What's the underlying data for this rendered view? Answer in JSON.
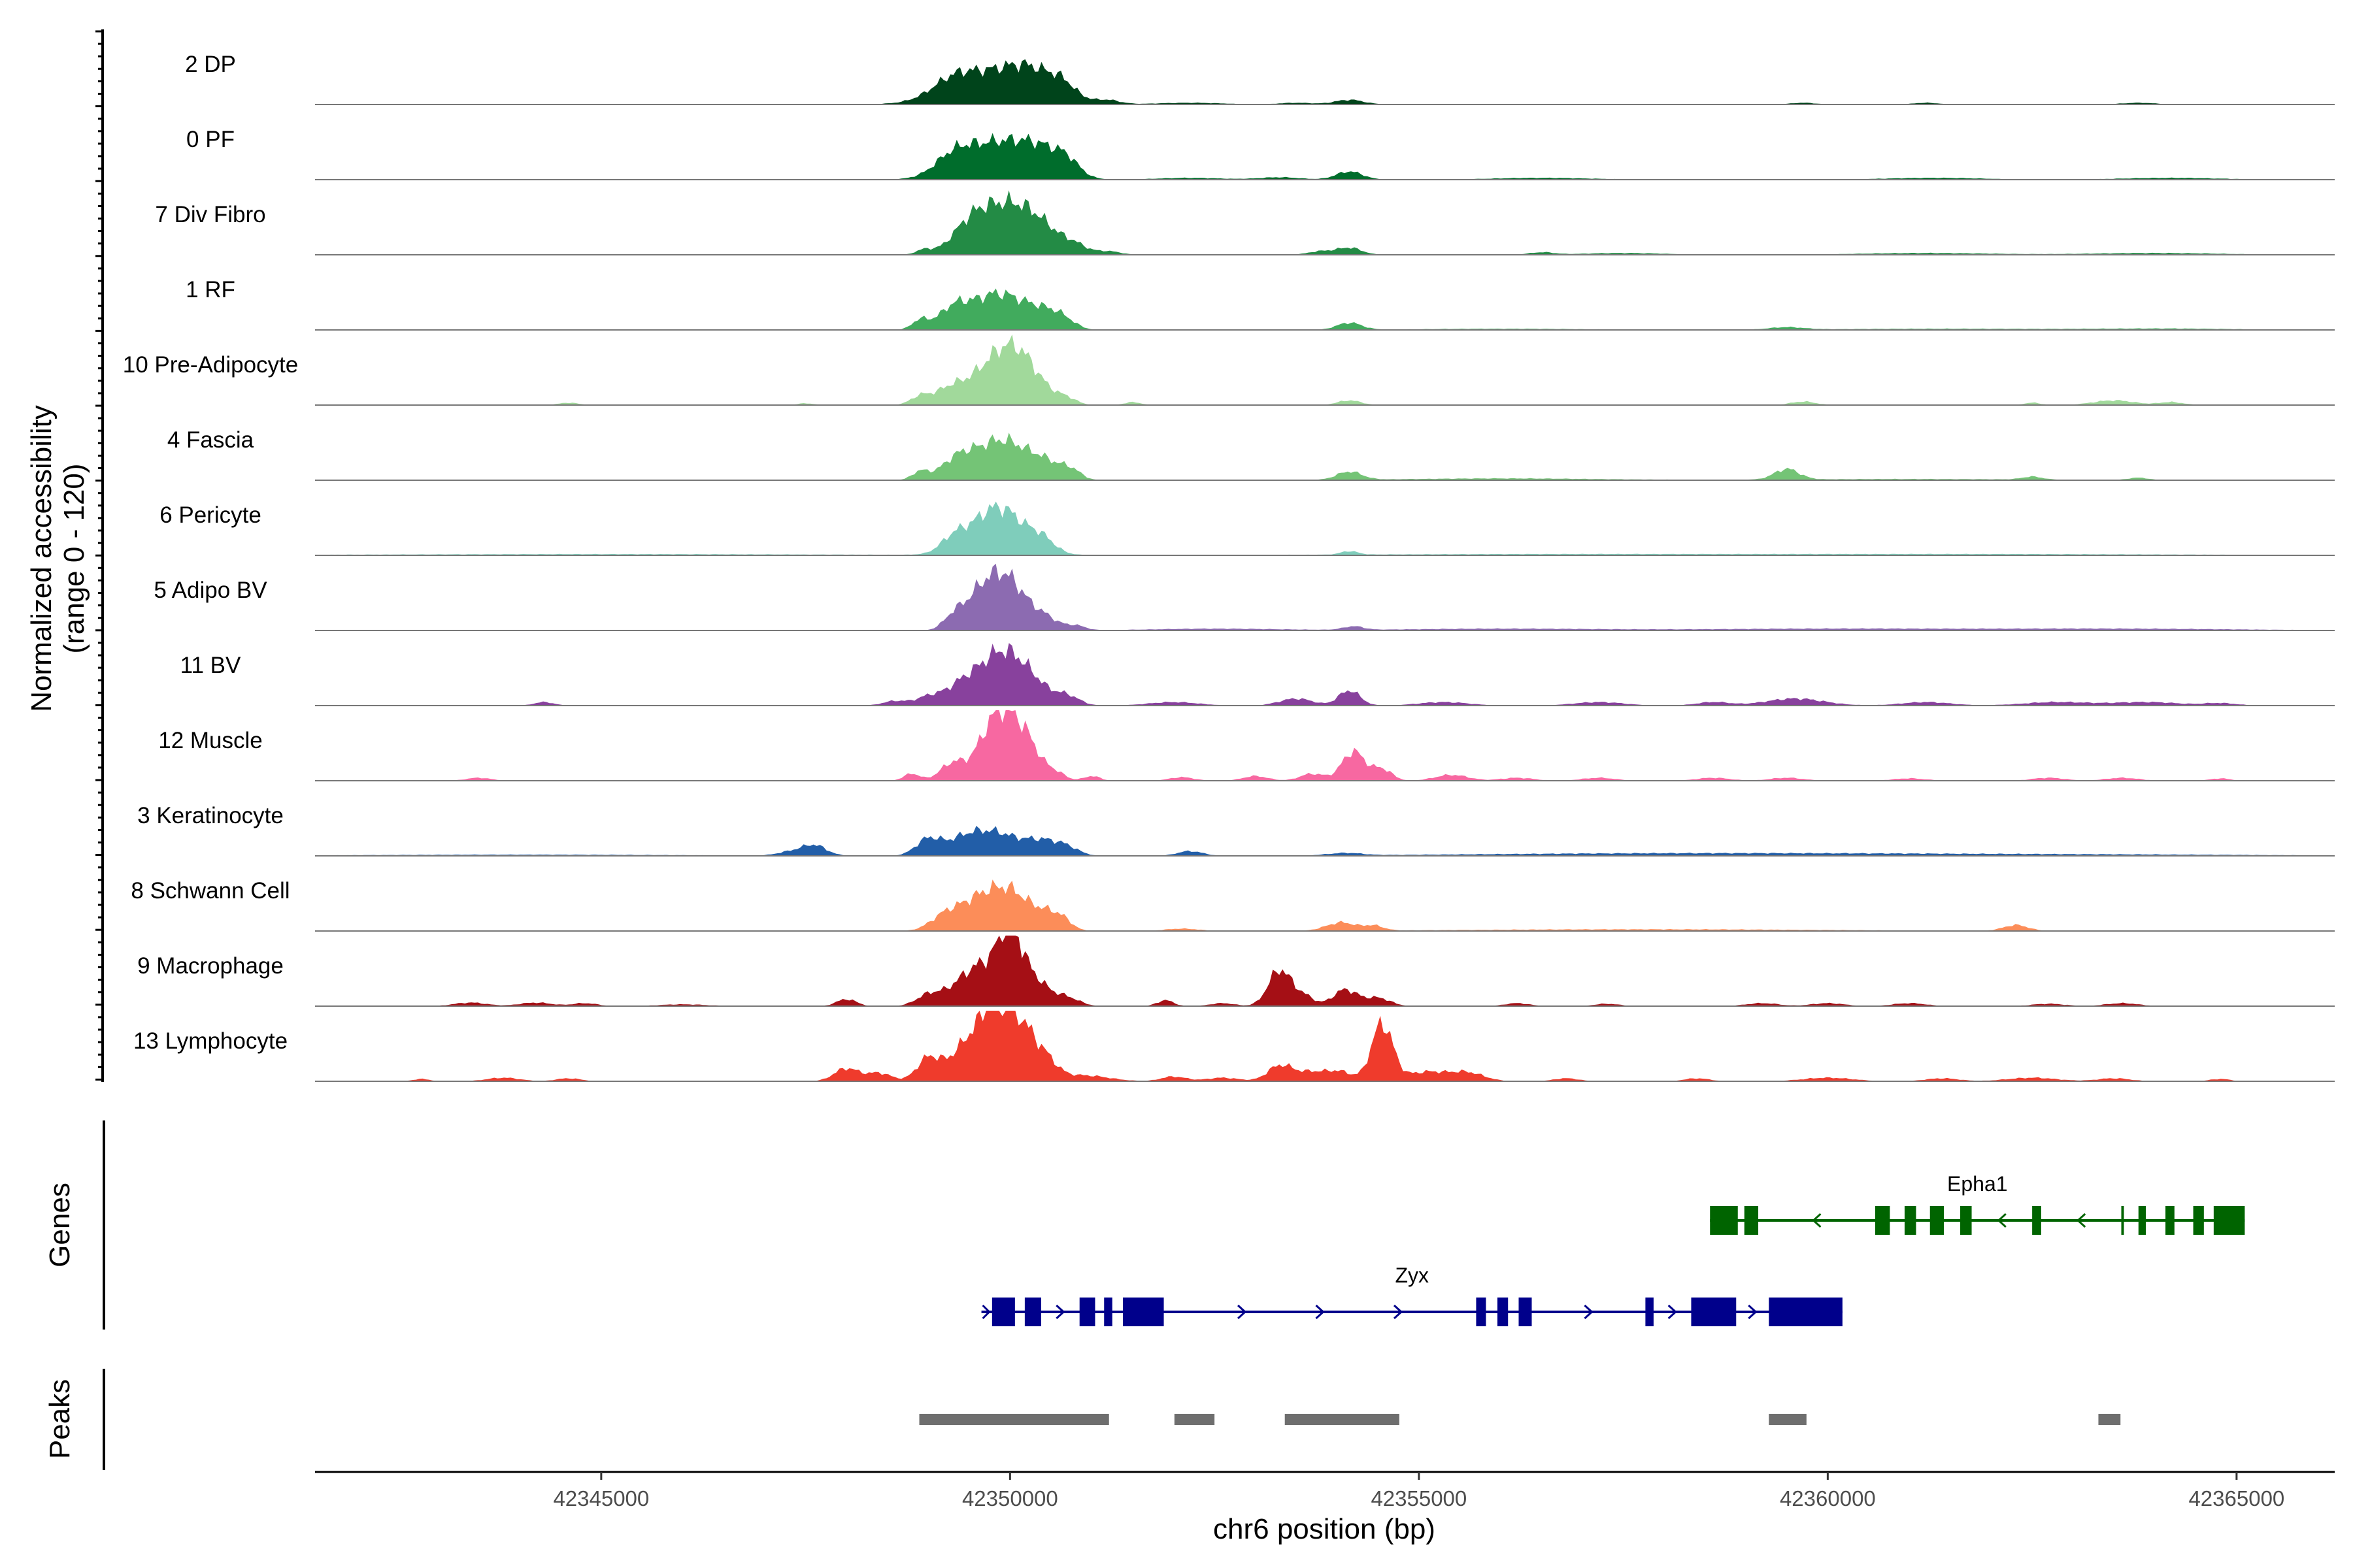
{
  "chart_data": {
    "type": "area",
    "title": "",
    "chrom": "chr6",
    "xlabel": "chr6 position (bp)",
    "ylabel": "Normalized accessibility",
    "ylabel_range": "(range 0 - 120)",
    "xlim": [
      42341500,
      42366200
    ],
    "ylim": [
      0,
      120
    ],
    "x_ticks": [
      42345000,
      42350000,
      42355000,
      42360000,
      42365000
    ],
    "x_tick_labels": [
      "42345000",
      "42350000",
      "42355000",
      "42360000",
      "42365000"
    ],
    "tracks": [
      {
        "name": "2 DP",
        "color": "#00441b",
        "peaks": [
          [
            42349850,
            52,
            520
          ],
          [
            42349300,
            22,
            250
          ],
          [
            42350300,
            28,
            300
          ],
          [
            42350650,
            16,
            150
          ],
          [
            42351200,
            6,
            150
          ],
          [
            42354150,
            8,
            180
          ],
          [
            42352200,
            3,
            400
          ],
          [
            42353500,
            3,
            200
          ],
          [
            42359700,
            3,
            150
          ],
          [
            42361200,
            3,
            150
          ],
          [
            42363800,
            3,
            200
          ]
        ]
      },
      {
        "name": "0 PF",
        "color": "#006d2c",
        "peaks": [
          [
            42349850,
            62,
            420
          ],
          [
            42349300,
            26,
            220
          ],
          [
            42350400,
            32,
            260
          ],
          [
            42350700,
            20,
            150
          ],
          [
            42354150,
            14,
            160
          ],
          [
            42353300,
            4,
            250
          ],
          [
            42352200,
            3,
            400
          ],
          [
            42356500,
            3,
            600
          ],
          [
            42361300,
            3,
            600
          ],
          [
            42364200,
            3,
            600
          ]
        ]
      },
      {
        "name": "7 Div Fibro",
        "color": "#238b45",
        "peaks": [
          [
            42349950,
            80,
            330
          ],
          [
            42349500,
            36,
            220
          ],
          [
            42350400,
            30,
            250
          ],
          [
            42348950,
            8,
            100
          ],
          [
            42350800,
            12,
            150
          ],
          [
            42351200,
            6,
            150
          ],
          [
            42354150,
            12,
            150
          ],
          [
            42353800,
            6,
            150
          ],
          [
            42356500,
            4,
            150
          ],
          [
            42357500,
            3,
            500
          ],
          [
            42361200,
            3,
            800
          ],
          [
            42364000,
            3,
            800
          ]
        ]
      },
      {
        "name": "1 RF",
        "color": "#41ab5d",
        "peaks": [
          [
            42349850,
            62,
            330
          ],
          [
            42349300,
            30,
            180
          ],
          [
            42348900,
            16,
            100
          ],
          [
            42350400,
            22,
            200
          ],
          [
            42350650,
            14,
            150
          ],
          [
            42354150,
            12,
            150
          ],
          [
            42359500,
            4,
            200
          ],
          [
            42356000,
            2,
            1000
          ],
          [
            42361500,
            2,
            1500
          ],
          [
            42364200,
            2,
            800
          ]
        ]
      },
      {
        "name": "10 Pre-Adipocyte",
        "color": "#a1d99b",
        "peaks": [
          [
            42349800,
            70,
            280
          ],
          [
            42350100,
            55,
            200
          ],
          [
            42349250,
            24,
            180
          ],
          [
            42348900,
            14,
            120
          ],
          [
            42350400,
            20,
            180
          ],
          [
            42350700,
            10,
            120
          ],
          [
            42351500,
            5,
            100
          ],
          [
            42354150,
            8,
            140
          ],
          [
            42359700,
            6,
            150
          ],
          [
            42363500,
            8,
            250
          ],
          [
            42364200,
            5,
            150
          ],
          [
            42344600,
            4,
            120
          ],
          [
            42347500,
            3,
            100
          ],
          [
            42362500,
            4,
            100
          ]
        ]
      },
      {
        "name": "4 Fascia",
        "color": "#74c476",
        "peaks": [
          [
            42349900,
            68,
            320
          ],
          [
            42349350,
            30,
            200
          ],
          [
            42348900,
            14,
            100
          ],
          [
            42350450,
            22,
            200
          ],
          [
            42350750,
            14,
            120
          ],
          [
            42354150,
            14,
            150
          ],
          [
            42359500,
            18,
            150
          ],
          [
            42362500,
            5,
            120
          ],
          [
            42363800,
            4,
            120
          ],
          [
            42356000,
            3,
            1200
          ],
          [
            42361000,
            2,
            1500
          ]
        ]
      },
      {
        "name": "6 Pericyte",
        "color": "#7fcdbb",
        "peaks": [
          [
            42349850,
            82,
            320
          ],
          [
            42349300,
            20,
            150
          ],
          [
            42350400,
            18,
            150
          ],
          [
            42354150,
            6,
            100
          ],
          [
            42345000,
            2,
            3000
          ],
          [
            42356500,
            2,
            2500
          ],
          [
            42362000,
            2,
            2500
          ]
        ]
      },
      {
        "name": "5 Adipo BV",
        "color": "#8c6bb1",
        "peaks": [
          [
            42349950,
            88,
            250
          ],
          [
            42349600,
            40,
            200
          ],
          [
            42349300,
            18,
            120
          ],
          [
            42350450,
            16,
            150
          ],
          [
            42350800,
            8,
            120
          ],
          [
            42354200,
            6,
            120
          ],
          [
            42352500,
            3,
            800
          ],
          [
            42356000,
            3,
            1200
          ],
          [
            42360000,
            3,
            1500
          ],
          [
            42363500,
            3,
            1500
          ]
        ]
      },
      {
        "name": "11 BV",
        "color": "#88419d",
        "peaks": [
          [
            42349900,
            90,
            270
          ],
          [
            42349400,
            30,
            200
          ],
          [
            42349000,
            14,
            150
          ],
          [
            42350300,
            24,
            200
          ],
          [
            42350700,
            16,
            150
          ],
          [
            42348600,
            8,
            150
          ],
          [
            42354150,
            26,
            130
          ],
          [
            42353500,
            12,
            200
          ],
          [
            42352000,
            6,
            300
          ],
          [
            42359600,
            12,
            350
          ],
          [
            42358600,
            6,
            200
          ],
          [
            42344300,
            6,
            120
          ],
          [
            42355300,
            6,
            300
          ],
          [
            42357200,
            6,
            300
          ],
          [
            42361200,
            6,
            300
          ],
          [
            42362800,
            6,
            400
          ],
          [
            42363900,
            6,
            400
          ],
          [
            42364800,
            4,
            200
          ]
        ]
      },
      {
        "name": "12 Muscle",
        "color": "#f768a1",
        "peaks": [
          [
            42349750,
            70,
            180
          ],
          [
            42350000,
            85,
            180
          ],
          [
            42350250,
            40,
            150
          ],
          [
            42349300,
            30,
            150
          ],
          [
            42348800,
            12,
            100
          ],
          [
            42350550,
            14,
            120
          ],
          [
            42351000,
            8,
            100
          ],
          [
            42354200,
            50,
            140
          ],
          [
            42354550,
            20,
            120
          ],
          [
            42353700,
            12,
            150
          ],
          [
            42353000,
            8,
            150
          ],
          [
            42355400,
            10,
            200
          ],
          [
            42352100,
            6,
            150
          ],
          [
            42343500,
            5,
            150
          ],
          [
            42356200,
            5,
            200
          ],
          [
            42357200,
            5,
            200
          ],
          [
            42358600,
            5,
            200
          ],
          [
            42359500,
            5,
            200
          ],
          [
            42361000,
            4,
            200
          ],
          [
            42362700,
            5,
            200
          ],
          [
            42363600,
            5,
            200
          ],
          [
            42364800,
            4,
            120
          ]
        ]
      },
      {
        "name": "3 Keratinocyte",
        "color": "#225ea8",
        "peaks": [
          [
            42349800,
            40,
            300
          ],
          [
            42349000,
            28,
            150
          ],
          [
            42349400,
            18,
            200
          ],
          [
            42350400,
            22,
            200
          ],
          [
            42350700,
            12,
            150
          ],
          [
            42347600,
            18,
            150
          ],
          [
            42347300,
            6,
            150
          ],
          [
            42352200,
            8,
            150
          ],
          [
            42354100,
            4,
            200
          ],
          [
            42344000,
            2,
            2000
          ],
          [
            42357000,
            3,
            2000
          ],
          [
            42360000,
            3,
            2000
          ],
          [
            42363500,
            2,
            2000
          ]
        ]
      },
      {
        "name": "8 Schwann Cell",
        "color": "#fc8d59",
        "peaks": [
          [
            42349650,
            55,
            260
          ],
          [
            42350050,
            52,
            220
          ],
          [
            42349200,
            22,
            180
          ],
          [
            42350450,
            24,
            160
          ],
          [
            42350650,
            14,
            120
          ],
          [
            42354050,
            14,
            180
          ],
          [
            42354450,
            8,
            120
          ],
          [
            42352100,
            4,
            200
          ],
          [
            42362300,
            10,
            150
          ],
          [
            42356500,
            2,
            1500
          ],
          [
            42359000,
            2,
            1500
          ]
        ]
      },
      {
        "name": "9 Macrophage",
        "color": "#a50f15",
        "peaks": [
          [
            42349650,
            70,
            300
          ],
          [
            42350000,
            98,
            140
          ],
          [
            42350300,
            40,
            180
          ],
          [
            42349000,
            16,
            150
          ],
          [
            42348000,
            12,
            120
          ],
          [
            42353300,
            62,
            140
          ],
          [
            42353600,
            16,
            120
          ],
          [
            42354100,
            28,
            150
          ],
          [
            42354500,
            14,
            150
          ],
          [
            42350700,
            14,
            150
          ],
          [
            42351900,
            10,
            100
          ],
          [
            42343400,
            6,
            200
          ],
          [
            42344200,
            6,
            200
          ],
          [
            42344800,
            5,
            150
          ],
          [
            42346000,
            3,
            300
          ],
          [
            42352600,
            5,
            150
          ],
          [
            42356200,
            5,
            150
          ],
          [
            42357300,
            4,
            150
          ],
          [
            42359200,
            5,
            200
          ],
          [
            42360000,
            5,
            200
          ],
          [
            42361000,
            5,
            200
          ],
          [
            42362700,
            4,
            200
          ],
          [
            42363600,
            5,
            200
          ]
        ]
      },
      {
        "name": "13 Lymphocyte",
        "color": "#ef3b2c",
        "peaks": [
          [
            42349500,
            65,
            220
          ],
          [
            42349800,
            95,
            160
          ],
          [
            42350100,
            90,
            160
          ],
          [
            42349000,
            38,
            140
          ],
          [
            42350400,
            40,
            160
          ],
          [
            42348000,
            22,
            150
          ],
          [
            42348400,
            14,
            150
          ],
          [
            42354550,
            98,
            130
          ],
          [
            42353300,
            26,
            150
          ],
          [
            42353700,
            16,
            200
          ],
          [
            42354050,
            14,
            150
          ],
          [
            42355100,
            16,
            250
          ],
          [
            42355600,
            14,
            200
          ],
          [
            42350900,
            10,
            300
          ],
          [
            42352000,
            8,
            150
          ],
          [
            42352600,
            6,
            200
          ],
          [
            42342800,
            4,
            100
          ],
          [
            42343800,
            6,
            200
          ],
          [
            42344600,
            5,
            150
          ],
          [
            42356800,
            5,
            150
          ],
          [
            42358400,
            5,
            150
          ],
          [
            42360000,
            6,
            300
          ],
          [
            42361400,
            5,
            200
          ],
          [
            42362500,
            6,
            300
          ],
          [
            42363500,
            5,
            200
          ],
          [
            42364800,
            4,
            120
          ]
        ]
      }
    ],
    "genes_track_label": "Genes",
    "genes": [
      {
        "name": "Epha1",
        "strand": "-",
        "start": 42358560,
        "end": 42365100,
        "color": "#006400",
        "exons": [
          [
            42358560,
            42358900
          ],
          [
            42358980,
            42359150
          ],
          [
            42360580,
            42360760
          ],
          [
            42360940,
            42361080
          ],
          [
            42361250,
            42361420
          ],
          [
            42361620,
            42361760
          ],
          [
            42362500,
            42362610
          ],
          [
            42363590,
            42363620
          ],
          [
            42363800,
            42363890
          ],
          [
            42364130,
            42364240
          ],
          [
            42364470,
            42364600
          ],
          [
            42364720,
            42365100
          ]
        ]
      },
      {
        "name": "Zyx",
        "strand": "+",
        "start": 42349650,
        "end": 42360180,
        "color": "#00008b",
        "exons": [
          [
            42349780,
            42350060
          ],
          [
            42350180,
            42350380
          ],
          [
            42350850,
            42351040
          ],
          [
            42351150,
            42351250
          ],
          [
            42351380,
            42351880
          ],
          [
            42355700,
            42355820
          ],
          [
            42355960,
            42356090
          ],
          [
            42356220,
            42356380
          ],
          [
            42357770,
            42357870
          ],
          [
            42358330,
            42358880
          ],
          [
            42359280,
            42360180
          ]
        ]
      }
    ],
    "peaks_track_label": "Peaks",
    "peak_color": "#6e6e6e",
    "peak_regions": [
      [
        42348890,
        42351210
      ],
      [
        42352010,
        42352500
      ],
      [
        42353360,
        42354760
      ],
      [
        42359280,
        42359740
      ],
      [
        42363310,
        42363580
      ]
    ]
  }
}
